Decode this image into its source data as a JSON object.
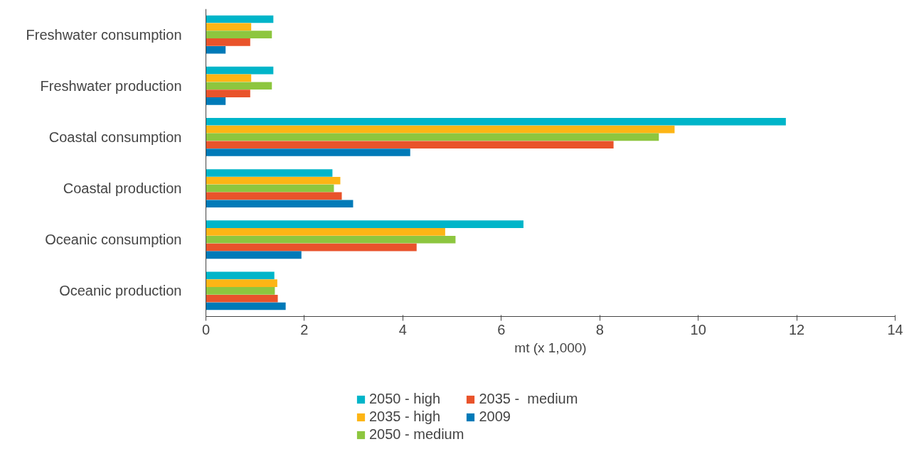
{
  "chart_data": {
    "type": "bar",
    "orientation": "horizontal",
    "xlabel": "mt (x 1,000)",
    "categories": [
      "Freshwater consumption",
      "Freshwater production",
      "Coastal consumption",
      "Coastal production",
      "Oceanic consumption",
      "Oceanic production"
    ],
    "series": [
      {
        "name": "2050 - high",
        "color": "#00b5c9",
        "values": [
          1.37,
          1.37,
          11.78,
          2.57,
          6.45,
          1.39
        ]
      },
      {
        "name": "2035 - high",
        "color": "#fdb515",
        "values": [
          0.92,
          0.92,
          9.52,
          2.73,
          4.86,
          1.45
        ]
      },
      {
        "name": "2050 - medium",
        "color": "#8dc63f",
        "values": [
          1.34,
          1.34,
          9.2,
          2.6,
          5.07,
          1.4
        ]
      },
      {
        "name": "2035 -  medium",
        "color": "#e9532b",
        "values": [
          0.9,
          0.9,
          8.28,
          2.76,
          4.28,
          1.46
        ]
      },
      {
        "name": "2009",
        "color": "#007ab8",
        "values": [
          0.4,
          0.4,
          4.15,
          2.99,
          1.94,
          1.62
        ]
      }
    ],
    "xlim": [
      0,
      14
    ],
    "xticks": [
      0,
      2,
      4,
      6,
      8,
      10,
      12,
      14
    ],
    "grid": false,
    "legend": "bottom"
  }
}
